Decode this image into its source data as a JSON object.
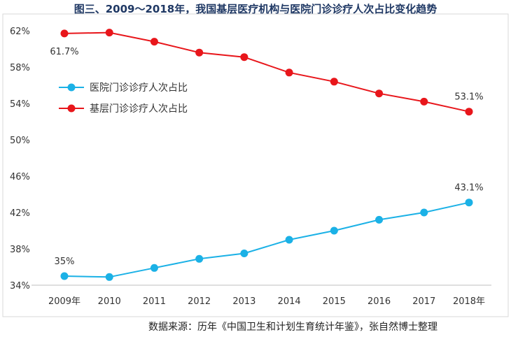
{
  "title": "图三、2009～2018年，我国基层医疗机构与医院门诊诊疗人次占比变化趋势",
  "source": "数据来源：历年《中国卫生和计划生育统计年鉴》，张自然博士整理",
  "colors": {
    "hospital": "#1bb1e6",
    "primary": "#e8161b",
    "axis": "#bfbfbf",
    "frame": "#d9d9d9"
  },
  "chart_data": {
    "type": "line",
    "x": [
      "2009年",
      "2010",
      "2011",
      "2012",
      "2013",
      "2014",
      "2015",
      "2016",
      "2017",
      "2018年"
    ],
    "series": [
      {
        "name": "医院门诊诊疗人次占比",
        "color": "#1bb1e6",
        "values": [
          35.0,
          34.9,
          35.9,
          36.9,
          37.5,
          39.0,
          40.0,
          41.2,
          42.0,
          43.1
        ]
      },
      {
        "name": "基层门诊诊疗人次占比",
        "color": "#e8161b",
        "values": [
          61.7,
          61.8,
          60.8,
          59.6,
          59.1,
          57.4,
          56.4,
          55.1,
          54.2,
          53.1
        ]
      }
    ],
    "yticks": [
      "34%",
      "38%",
      "42%",
      "46%",
      "50%",
      "54%",
      "58%",
      "62%"
    ],
    "ylim": [
      34,
      62
    ],
    "data_labels": [
      {
        "series": 0,
        "index": 0,
        "text": "35%"
      },
      {
        "series": 0,
        "index": 9,
        "text": "43.1%"
      },
      {
        "series": 1,
        "index": 0,
        "text": "61.7%"
      },
      {
        "series": 1,
        "index": 9,
        "text": "53.1%"
      }
    ],
    "legend_position": "left-middle",
    "grid": false
  }
}
